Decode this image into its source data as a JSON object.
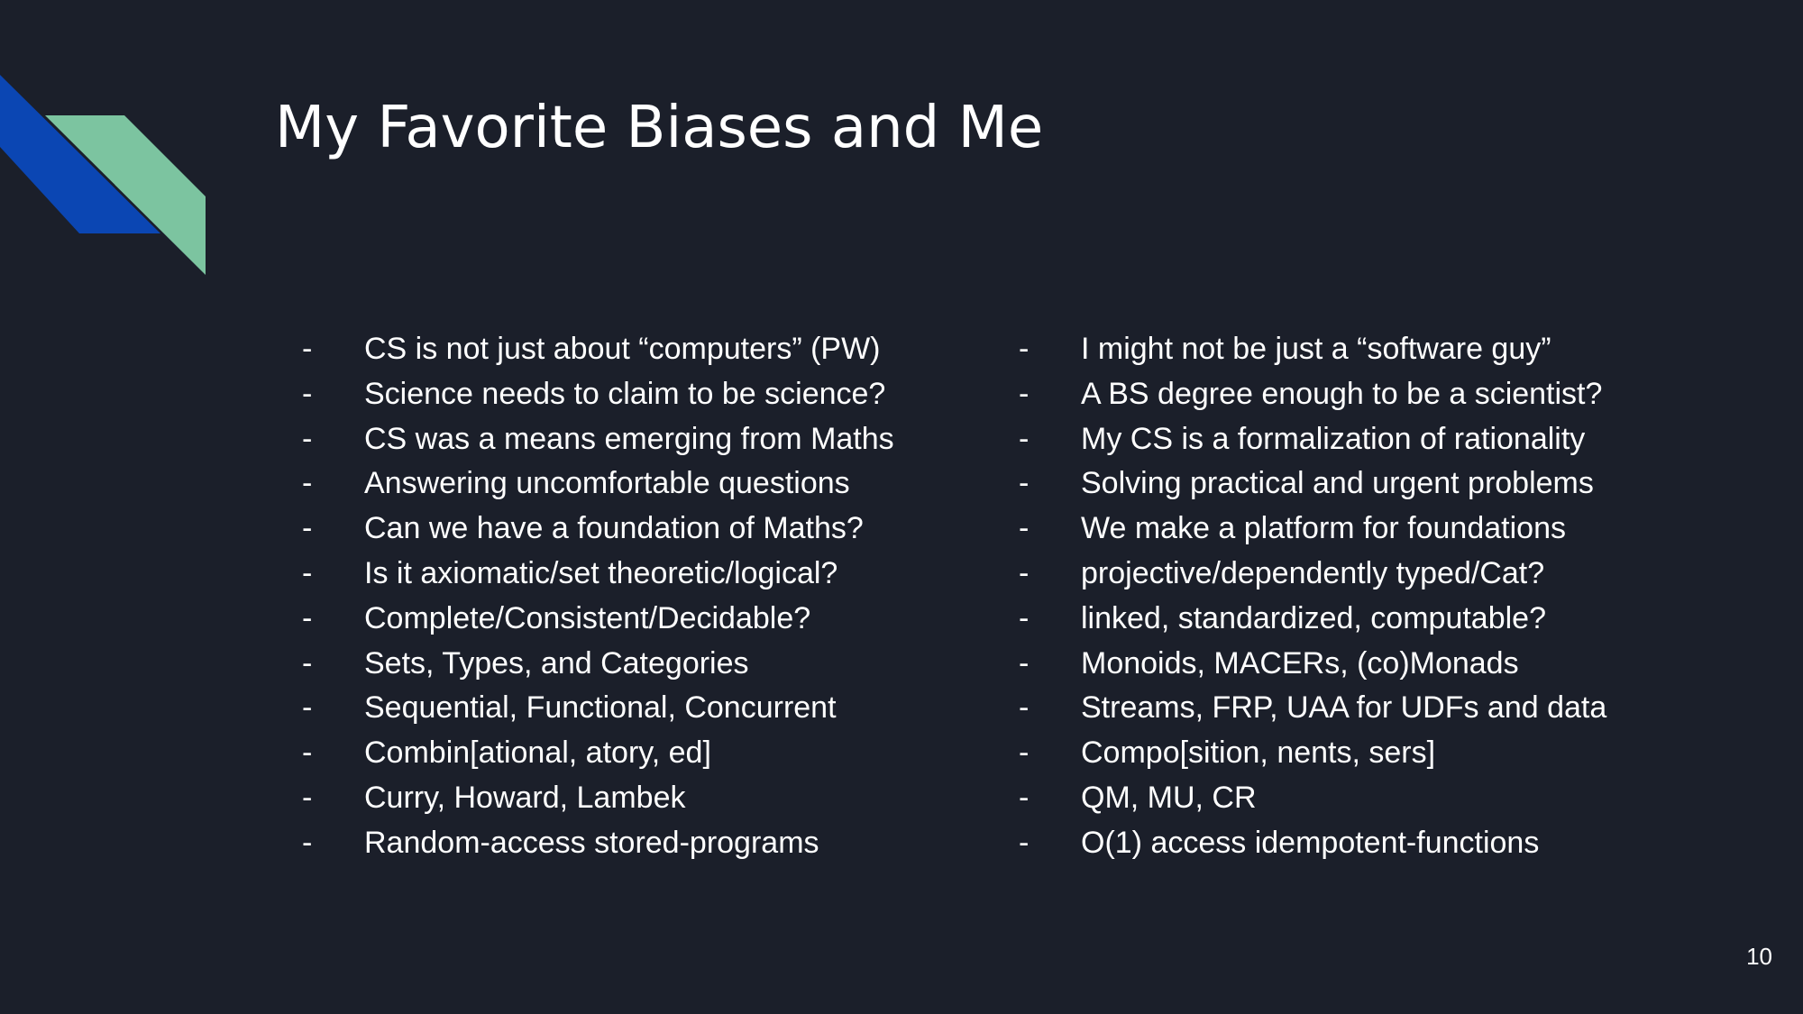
{
  "slide": {
    "title": "My Favorite Biases and Me",
    "page_number": "10",
    "bullet_marker": "-",
    "colors": {
      "background": "#1b1f2a",
      "accent_blue": "#0b46b3",
      "accent_green": "#7cc4a0",
      "text": "#ffffff"
    }
  },
  "left_column": [
    "CS is not just about “computers” (PW)",
    "Science needs to claim to be science?",
    "CS was a means emerging from Maths",
    "Answering uncomfortable questions",
    "Can we have a foundation of Maths?",
    "Is it axiomatic/set theoretic/logical?",
    "Complete/Consistent/Decidable?",
    "Sets, Types, and Categories",
    "Sequential, Functional, Concurrent",
    "Combin[ational, atory, ed]",
    "Curry, Howard, Lambek",
    "Random-access stored-programs"
  ],
  "right_column": [
    "I might not be just a “software guy”",
    "A BS degree enough to be a scientist?",
    "My CS is a formalization of rationality",
    "Solving practical and urgent problems",
    "We make a platform for foundations",
    "projective/dependently typed/Cat?",
    "linked, standardized, computable?",
    "Monoids, MACERs, (co)Monads",
    "Streams, FRP, UAA for UDFs and data",
    "Compo[sition, nents, sers]",
    "QM, MU, CR",
    "O(1) access idempotent-functions"
  ]
}
